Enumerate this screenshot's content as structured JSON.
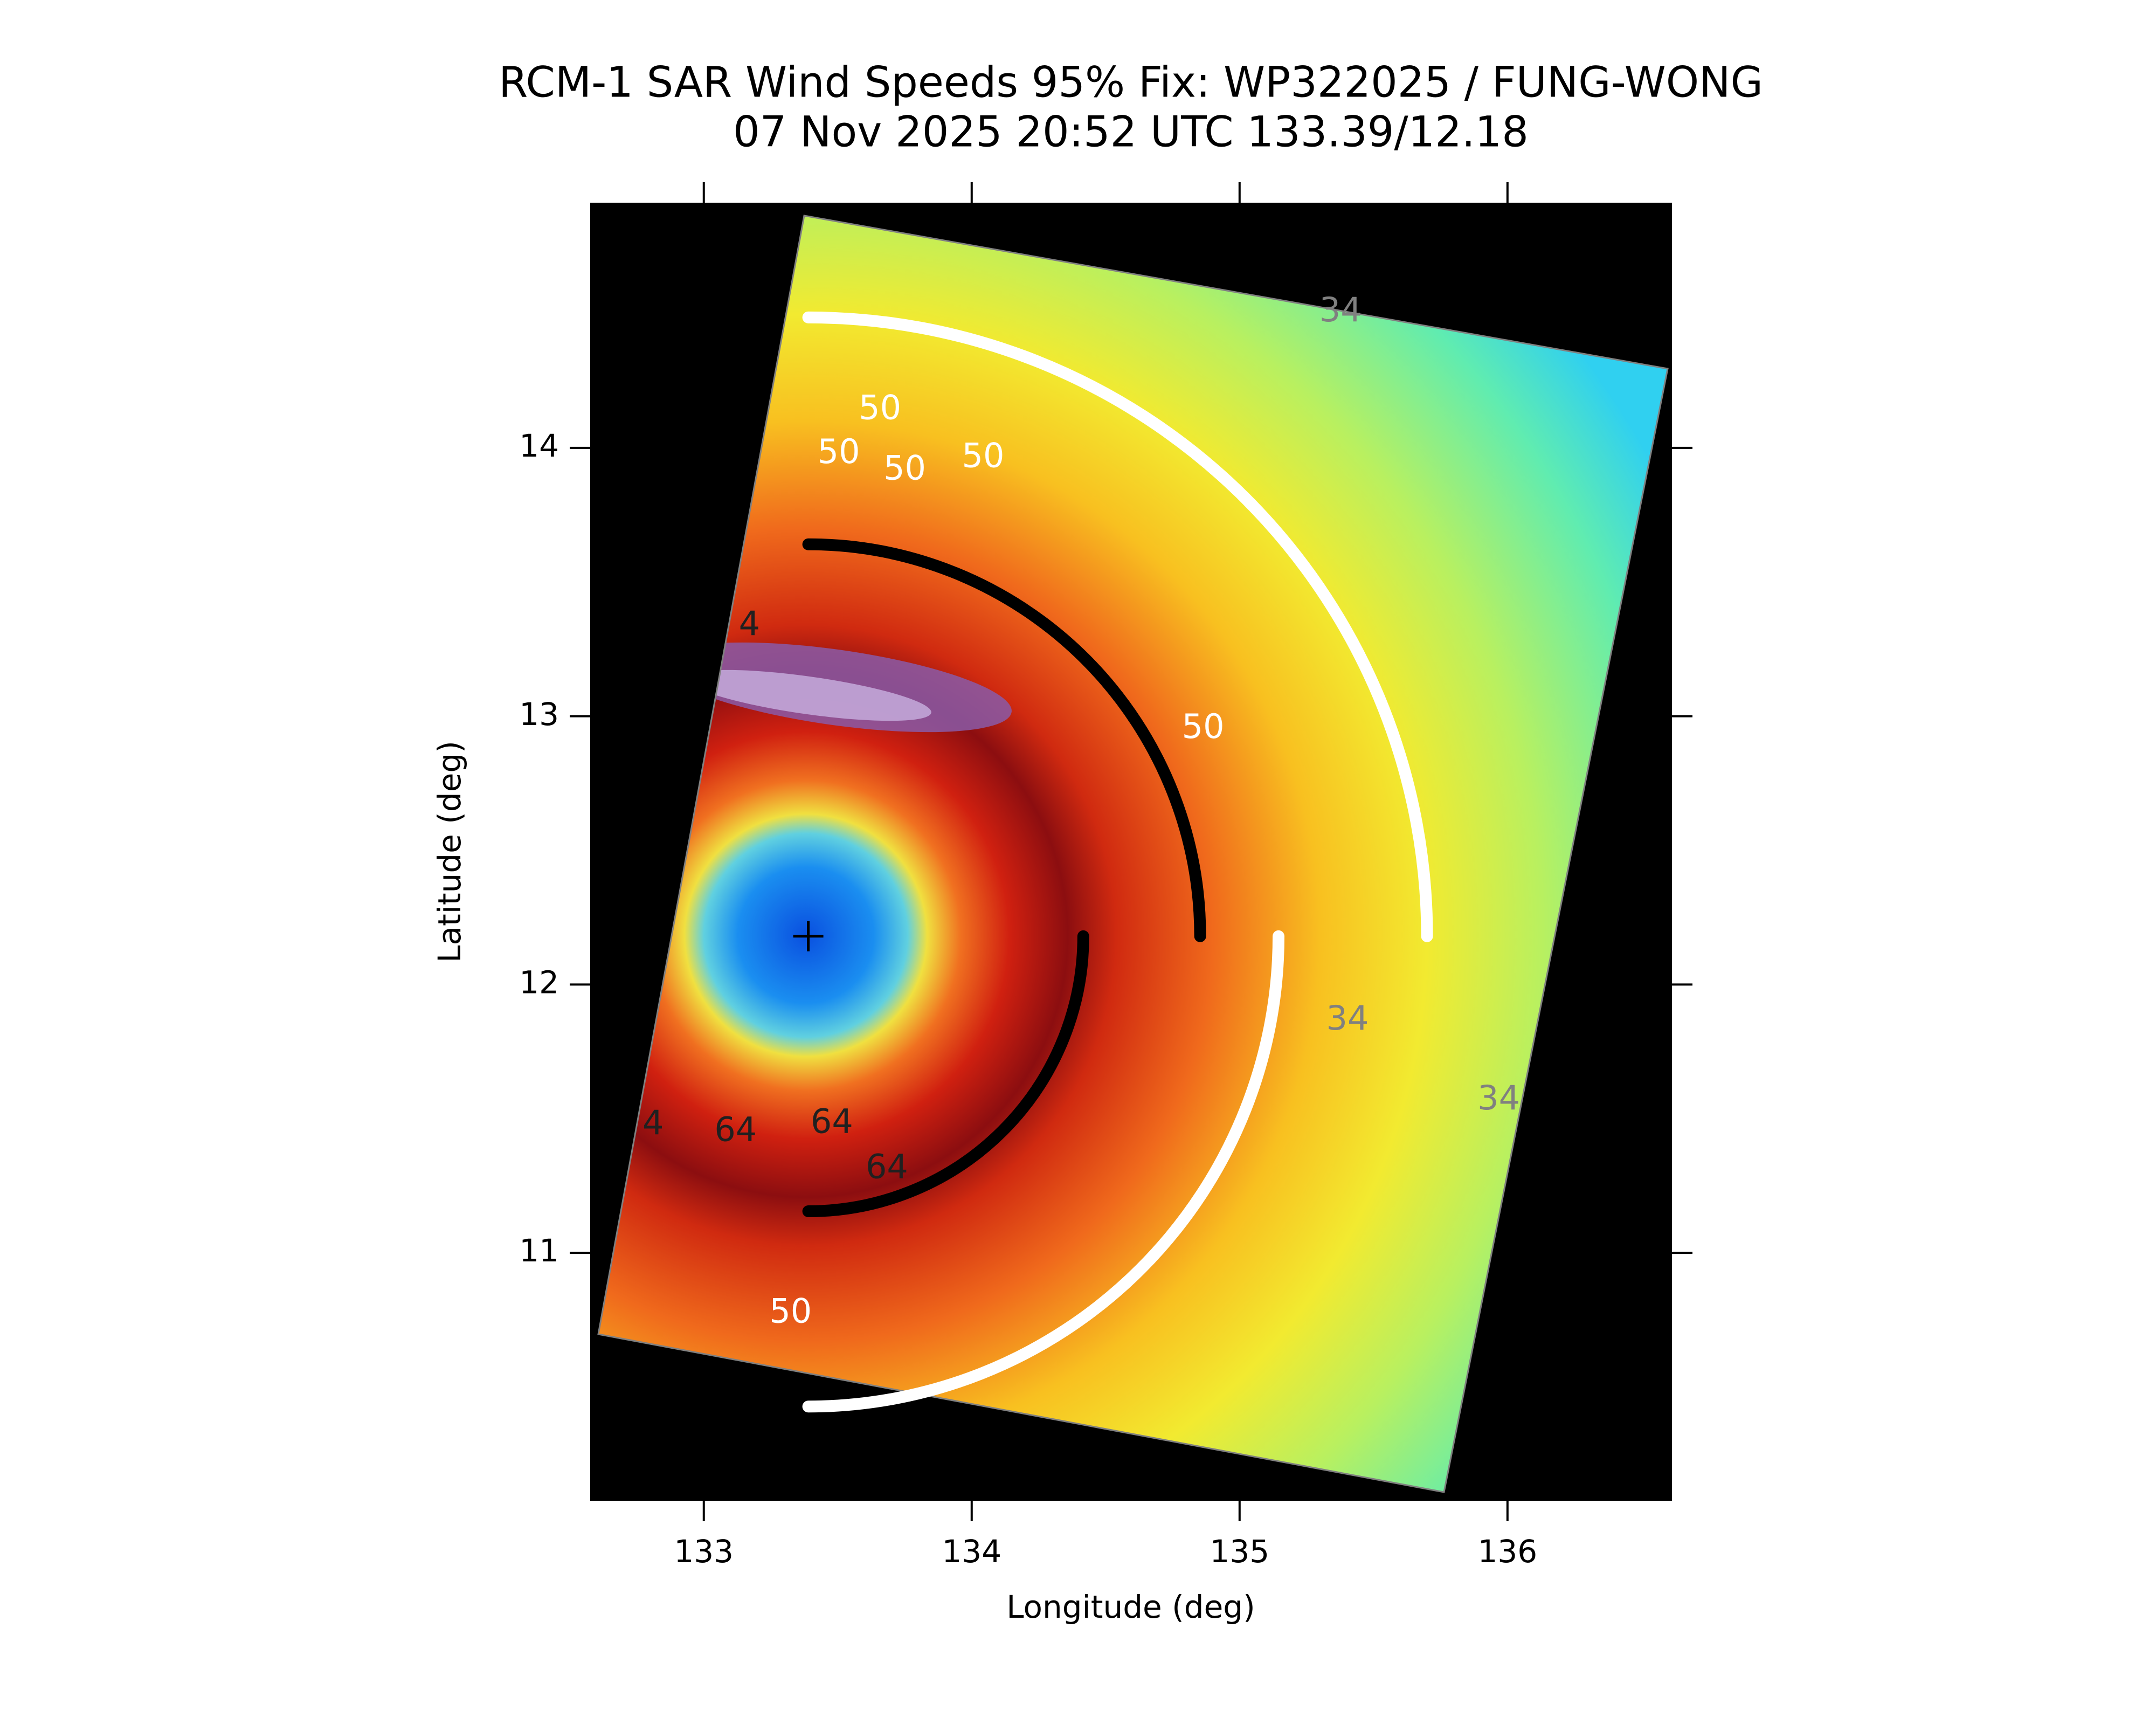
{
  "chart_data": {
    "type": "sar_wind_map",
    "title": "RCM-1 SAR Wind Speeds 95% Fix: WP322025 / FUNG-WONG",
    "subtitle": "07 Nov 2025 20:52 UTC  133.39/12.18",
    "x_label": "Longitude (deg)",
    "y_label": "Latitude (deg)",
    "xlim": [
      132.58,
      136.61
    ],
    "ylim": [
      10.08,
      14.91
    ],
    "xticks": [
      133,
      134,
      135,
      136
    ],
    "yticks": [
      11,
      12,
      13,
      14
    ],
    "center": {
      "lon": 133.39,
      "lat": 12.18
    },
    "contour_labels": [
      {
        "text": "34",
        "color": "#808080"
      },
      {
        "text": "34",
        "color": "#808080"
      },
      {
        "text": "34",
        "color": "#808080"
      },
      {
        "text": "50",
        "color": "#ffffff"
      },
      {
        "text": "50",
        "color": "#ffffff"
      },
      {
        "text": "50",
        "color": "#ffffff"
      },
      {
        "text": "50",
        "color": "#ffffff"
      },
      {
        "text": "50",
        "color": "#ffffff"
      },
      {
        "text": "50",
        "color": "#ffffff"
      },
      {
        "text": "64",
        "color": "#202020"
      },
      {
        "text": "64",
        "color": "#202020"
      },
      {
        "text": "64",
        "color": "#202020"
      },
      {
        "text": "4",
        "color": "#202020"
      },
      {
        "text": "4",
        "color": "#202020"
      }
    ]
  }
}
